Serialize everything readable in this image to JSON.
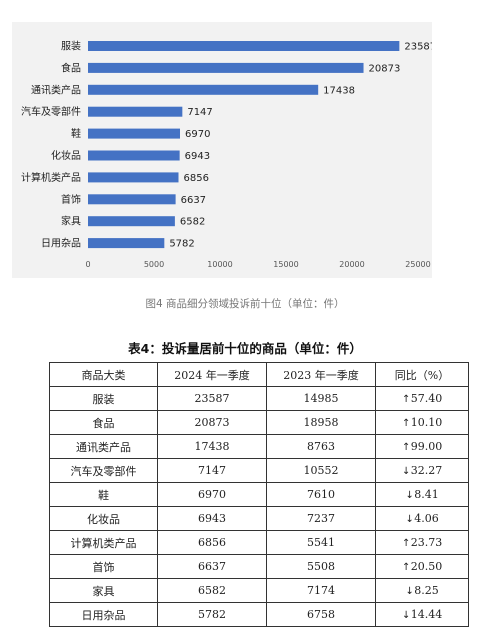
{
  "chart_data": {
    "type": "bar",
    "orientation": "horizontal",
    "categories": [
      "服装",
      "食品",
      "通讯类产品",
      "汽车及零部件",
      "鞋",
      "化妆品",
      "计算机类产品",
      "首饰",
      "家具",
      "日用杂品"
    ],
    "values": [
      23587,
      20873,
      17438,
      7147,
      6970,
      6943,
      6856,
      6637,
      6582,
      5782
    ],
    "value_labels": [
      "23587",
      "20873",
      "17438",
      "7147",
      "6970",
      "6943",
      "6856",
      "6637",
      "6582",
      "5782"
    ],
    "xlim": [
      0,
      25000
    ],
    "xticks": [
      0,
      5000,
      10000,
      15000,
      20000,
      25000
    ],
    "xtick_labels": [
      "0",
      "5000",
      "10000",
      "15000",
      "20000",
      "25000"
    ],
    "bar_color": "#4472c4",
    "panel_color": "#f2f2f2",
    "grid": false
  },
  "figure_caption": "图4  商品细分领域投诉前十位（单位：件）",
  "table": {
    "title": "表4：投诉量居前十位的商品（单位：件）",
    "headers": [
      "商品大类",
      "2024 年一季度",
      "2023 年一季度",
      "同比（%）"
    ],
    "rows": [
      {
        "category": "服装",
        "q2024": "23587",
        "q2023": "14985",
        "arrow": "↑",
        "yoy": "57.40",
        "direction": "up"
      },
      {
        "category": "食品",
        "q2024": "20873",
        "q2023": "18958",
        "arrow": "↑",
        "yoy": "10.10",
        "direction": "up"
      },
      {
        "category": "通讯类产品",
        "q2024": "17438",
        "q2023": "8763",
        "arrow": "↑",
        "yoy": "99.00",
        "direction": "up"
      },
      {
        "category": "汽车及零部件",
        "q2024": "7147",
        "q2023": "10552",
        "arrow": "↓",
        "yoy": "32.27",
        "direction": "down"
      },
      {
        "category": "鞋",
        "q2024": "6970",
        "q2023": "7610",
        "arrow": "↓",
        "yoy": "8.41",
        "direction": "down"
      },
      {
        "category": "化妆品",
        "q2024": "6943",
        "q2023": "7237",
        "arrow": "↓",
        "yoy": "4.06",
        "direction": "down"
      },
      {
        "category": "计算机类产品",
        "q2024": "6856",
        "q2023": "5541",
        "arrow": "↑",
        "yoy": "23.73",
        "direction": "up"
      },
      {
        "category": "首饰",
        "q2024": "6637",
        "q2023": "5508",
        "arrow": "↑",
        "yoy": "20.50",
        "direction": "up"
      },
      {
        "category": "家具",
        "q2024": "6582",
        "q2023": "7174",
        "arrow": "↓",
        "yoy": "8.25",
        "direction": "down"
      },
      {
        "category": "日用杂品",
        "q2024": "5782",
        "q2023": "6758",
        "arrow": "↓",
        "yoy": "14.44",
        "direction": "down"
      }
    ]
  }
}
